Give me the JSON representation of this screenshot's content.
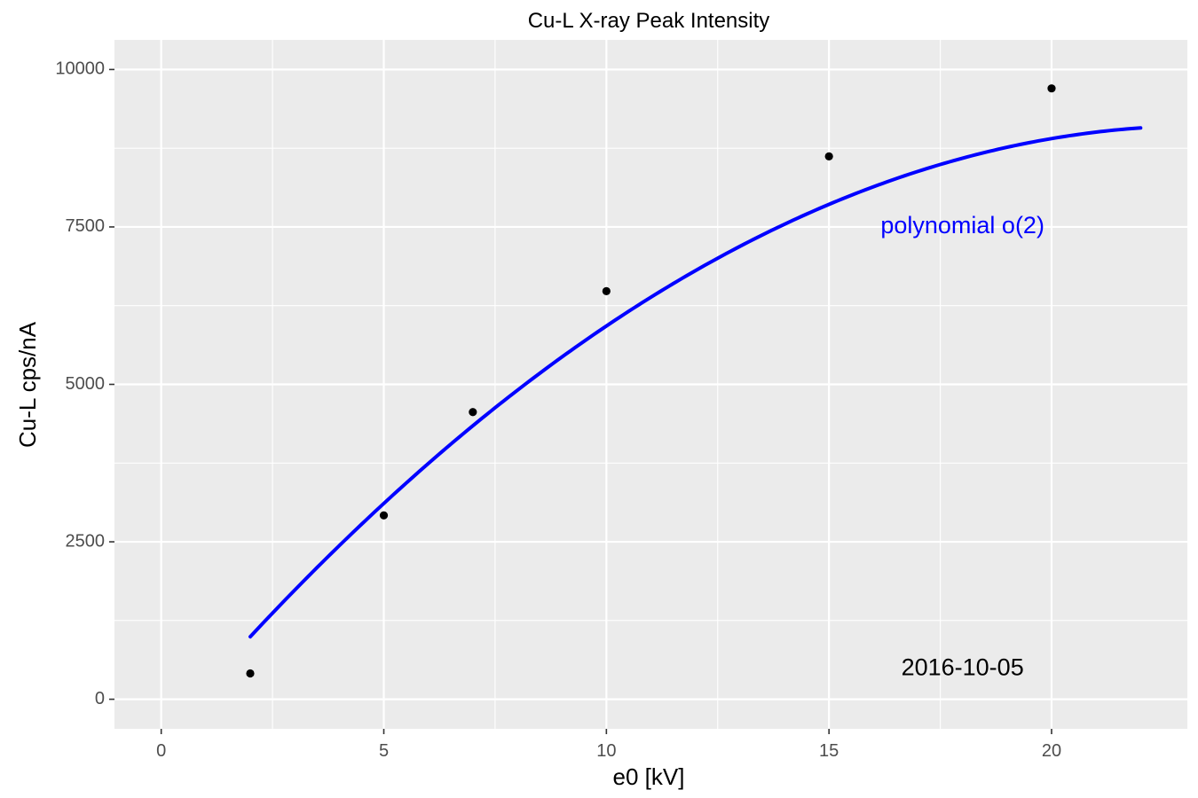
{
  "chart_data": {
    "type": "line",
    "title": "Cu-L X-ray Peak Intensity",
    "xlabel": "e0 [kV]",
    "ylabel": "Cu-L cps/nA",
    "xlim": [
      -1.05,
      23.05
    ],
    "ylim": [
      -470,
      10470
    ],
    "x_ticks": [
      0,
      5,
      10,
      15,
      20
    ],
    "x_tick_labels": [
      "0",
      "5",
      "10",
      "15",
      "20"
    ],
    "y_ticks": [
      0,
      2500,
      5000,
      7500,
      10000
    ],
    "y_tick_labels": [
      "0",
      "2500",
      "5000",
      "7500",
      "10000"
    ],
    "grid": true,
    "series": [
      {
        "kind": "points",
        "color": "#000000",
        "x": [
          2,
          5,
          7,
          10,
          15,
          20
        ],
        "y": [
          410,
          2920,
          4560,
          6480,
          8620,
          9700
        ]
      },
      {
        "kind": "fit-line",
        "color": "#0000ff",
        "x_range": [
          2,
          22
        ],
        "coefficients": [
          -595,
          829.5,
          -17.73
        ]
      }
    ],
    "annotations": [
      {
        "text": "polynomial o(2)",
        "x": 18,
        "y": 7500,
        "color": "#0000ff"
      },
      {
        "text": "2016-10-05",
        "x": 18,
        "y": 480,
        "color": "#000000"
      }
    ],
    "colors": {
      "panel": "#ebebeb",
      "grid": "#ffffff",
      "fit": "#0000ff",
      "points": "#000000"
    }
  }
}
